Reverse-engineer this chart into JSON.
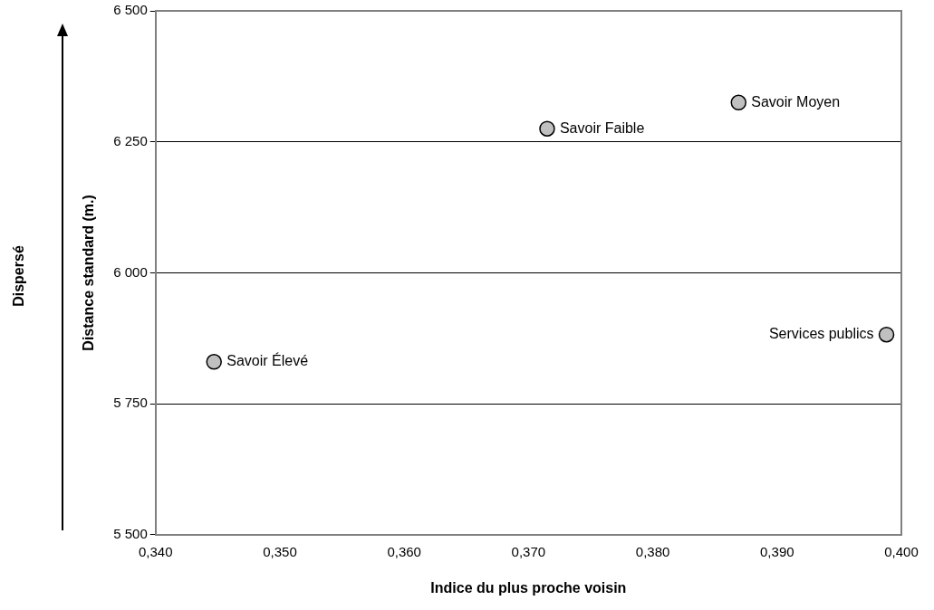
{
  "chart_data": {
    "type": "scatter",
    "xlabel": "Indice du plus proche voisin",
    "ylabel": "Distance standard (m.)",
    "series": [
      {
        "color": "#c0c0c0",
        "x": [
          0.3447,
          0.3715,
          0.3869,
          0.3988
        ],
        "values": [
          5830,
          6275,
          6325,
          5882
        ]
      }
    ],
    "annotations": [
      {
        "text": "Savoir Élevé",
        "x": 0.3447,
        "y": 5830
      },
      {
        "text": "Savoir Faible",
        "x": 0.3715,
        "y": 6275
      },
      {
        "text": "Savoir Moyen",
        "x": 0.3869,
        "y": 6325
      },
      {
        "text": "Services publics",
        "x": 0.3988,
        "y": 5882
      },
      "Dispersé"
    ],
    "xlim": [
      0.34,
      0.4
    ],
    "xticks": [
      {
        "value": 0.34,
        "label": "0,340"
      },
      {
        "value": 0.35,
        "label": "0,350"
      },
      {
        "value": 0.36,
        "label": "0,360"
      },
      {
        "value": 0.37,
        "label": "0,370"
      },
      {
        "value": 0.38,
        "label": "0,380"
      },
      {
        "value": 0.39,
        "label": "0,390"
      },
      {
        "value": 0.4,
        "label": "0,400"
      }
    ],
    "ylim": [
      5500,
      6500
    ],
    "yticks": [
      {
        "value": 5500,
        "label": "5 500"
      },
      {
        "value": 5750,
        "label": "5 750"
      },
      {
        "value": 6000,
        "label": "6 000"
      },
      {
        "value": 6250,
        "label": "6 250"
      },
      {
        "value": 6500,
        "label": "6 500"
      }
    ],
    "grid": "y",
    "marker": "circle",
    "legend": false
  }
}
